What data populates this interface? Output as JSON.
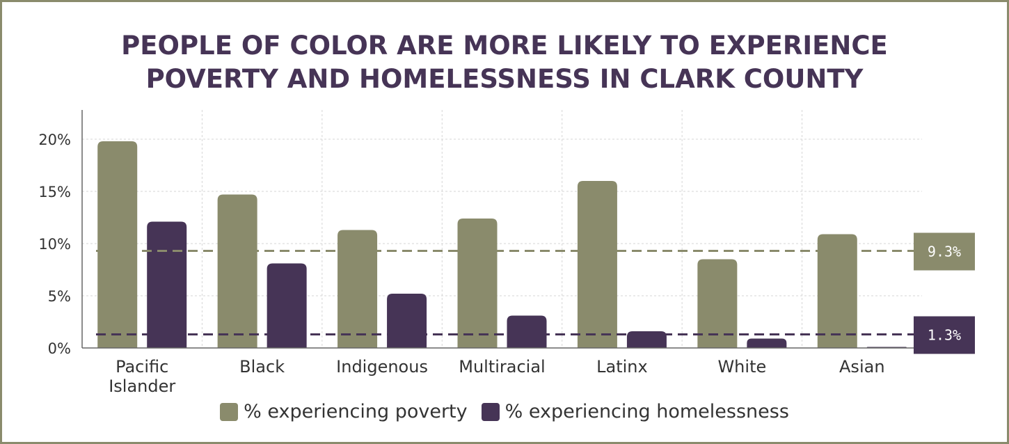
{
  "chart_data": {
    "type": "bar",
    "title": "PEOPLE OF COLOR ARE MORE LIKELY TO EXPERIENCE POVERTY AND HOMELESSNESS IN CLARK COUNTY",
    "title_lines": [
      "PEOPLE OF COLOR ARE MORE LIKELY TO EXPERIENCE",
      "POVERTY AND HOMELESSNESS IN CLARK COUNTY"
    ],
    "categories": [
      [
        "Pacific",
        "Islander"
      ],
      [
        "Black"
      ],
      [
        "Indigenous"
      ],
      [
        "Multiracial"
      ],
      [
        "Latinx"
      ],
      [
        "White"
      ],
      [
        "Asian"
      ]
    ],
    "series": [
      {
        "name": "% experiencing poverty",
        "color": "#8a8b6c",
        "values": [
          19.8,
          14.7,
          11.3,
          12.4,
          16.0,
          8.5,
          10.9
        ]
      },
      {
        "name": "% experiencing homelessness",
        "color": "#463456",
        "values": [
          12.1,
          8.1,
          5.2,
          3.1,
          1.6,
          0.9,
          0.1
        ]
      }
    ],
    "y_ticks": [
      "0%",
      "5%",
      "10%",
      "15%",
      "20%"
    ],
    "y_tick_values": [
      0,
      5,
      10,
      15,
      20
    ],
    "ylim": [
      0,
      22
    ],
    "reference_lines": [
      {
        "value": 9.3,
        "label": "9.3%",
        "color": "#8a8b6c"
      },
      {
        "value": 1.3,
        "label": "1.3%",
        "color": "#463456"
      }
    ],
    "grid": true,
    "legend_position": "bottom"
  }
}
